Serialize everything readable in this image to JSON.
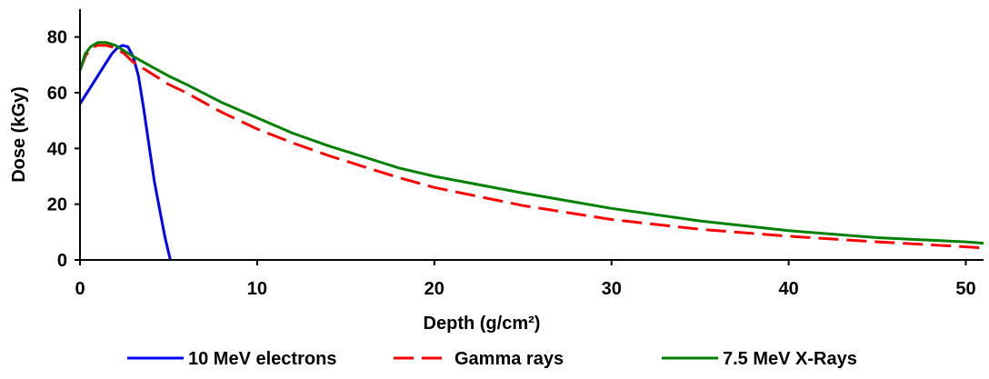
{
  "chart_data": {
    "type": "line",
    "title": "",
    "xlabel": "Depth (g/cm²)",
    "ylabel": "Dose (kGy)",
    "xlim": [
      0,
      51
    ],
    "ylim": [
      0,
      90
    ],
    "xticks": [
      0,
      10,
      20,
      30,
      40,
      50
    ],
    "xtick_labels": [
      "0",
      "10",
      "20",
      "30",
      "40",
      "50"
    ],
    "yticks": [
      0,
      20,
      40,
      60,
      80
    ],
    "ytick_labels": [
      "0",
      "20",
      "40",
      "60",
      "80"
    ],
    "grid": false,
    "legend_position": "bottom",
    "series": [
      {
        "name": "10 MeV electrons",
        "color": "#0000ff",
        "style": "solid",
        "x": [
          0,
          0.3,
          0.6,
          1.0,
          1.4,
          1.8,
          2.1,
          2.4,
          2.7,
          3.0,
          3.3,
          3.6,
          3.9,
          4.2,
          4.5,
          4.8,
          5.1
        ],
        "y": [
          56,
          59,
          62,
          66,
          70,
          74,
          76,
          77,
          76.5,
          73,
          66,
          54,
          41,
          28,
          18,
          8,
          0
        ]
      },
      {
        "name": "Gamma rays",
        "color": "#ff0000",
        "style": "dashed",
        "x": [
          0,
          0.3,
          0.6,
          1.0,
          1.5,
          2.0,
          2.5,
          3.0,
          4.0,
          5.0,
          6.0,
          8.0,
          10,
          12,
          14,
          16,
          18,
          20,
          25,
          30,
          35,
          40,
          45,
          50,
          51
        ],
        "y": [
          68,
          73,
          76,
          77,
          77,
          76,
          74,
          71,
          67,
          63,
          60,
          53,
          47,
          42,
          37.5,
          33.5,
          29.5,
          26,
          19.5,
          14.5,
          11,
          8.5,
          6.5,
          4.7,
          4.3
        ]
      },
      {
        "name": "7.5 MeV X-Rays",
        "color": "#008000",
        "style": "solid",
        "x": [
          0,
          0.3,
          0.6,
          1.0,
          1.5,
          2.0,
          2.5,
          3.0,
          4.0,
          5.0,
          6.0,
          8.0,
          10,
          12,
          14,
          16,
          18,
          20,
          25,
          30,
          35,
          40,
          45,
          50,
          51
        ],
        "y": [
          68,
          74,
          76.5,
          78,
          78,
          77,
          75,
          73,
          69.5,
          66,
          63,
          56.5,
          51,
          45.5,
          41,
          37,
          33,
          30,
          24,
          18.5,
          14,
          10.5,
          8,
          6.5,
          6
        ]
      }
    ]
  }
}
